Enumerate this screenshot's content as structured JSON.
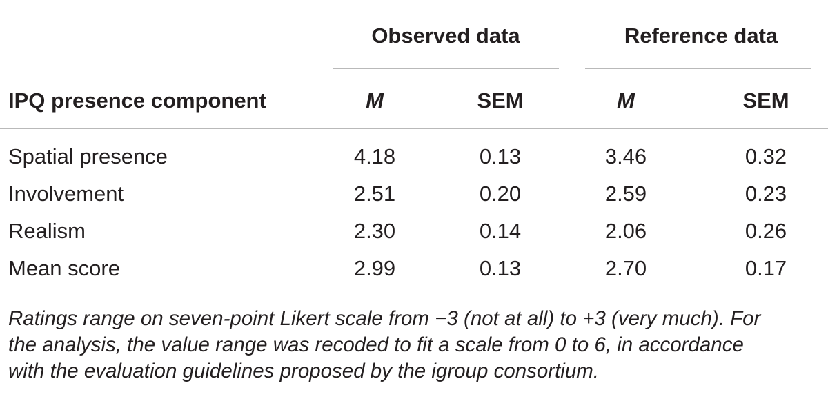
{
  "table": {
    "group_headers": {
      "observed": "Observed data",
      "reference": "Reference data"
    },
    "column_headers": {
      "label": "IPQ presence component",
      "observed_m": "M",
      "observed_sem": "SEM",
      "reference_m": "M",
      "reference_sem": "SEM"
    },
    "rows": [
      {
        "label": "Spatial presence",
        "observed_m": "4.18",
        "observed_sem": "0.13",
        "reference_m": "3.46",
        "reference_sem": "0.32"
      },
      {
        "label": "Involvement",
        "observed_m": "2.51",
        "observed_sem": "0.20",
        "reference_m": "2.59",
        "reference_sem": "0.23"
      },
      {
        "label": "Realism",
        "observed_m": "2.30",
        "observed_sem": "0.14",
        "reference_m": "2.06",
        "reference_sem": "0.26"
      },
      {
        "label": "Mean score",
        "observed_m": "2.99",
        "observed_sem": "0.13",
        "reference_m": "2.70",
        "reference_sem": "0.17"
      }
    ]
  },
  "footnote": {
    "lines": [
      "Ratings range on seven-point Likert scale from −3 (not at all) to +3 (very much). For",
      "the analysis, the value range was recoded to fit a scale from 0 to 6, in accordance",
      "with the evaluation guidelines proposed by the igroup consortium."
    ]
  }
}
